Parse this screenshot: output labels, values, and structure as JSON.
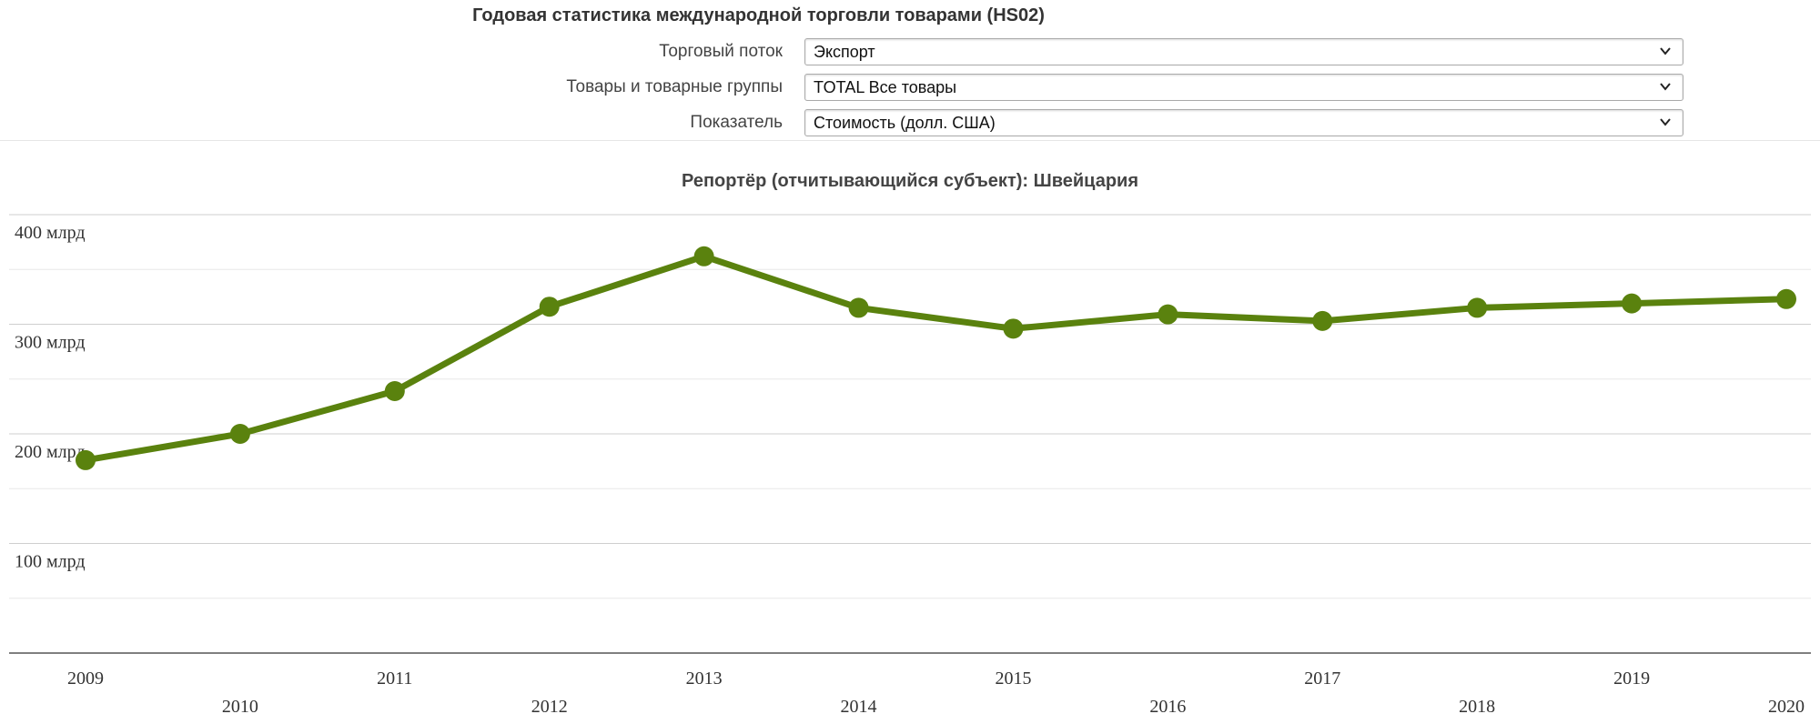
{
  "header": {
    "title": "Годовая статистика международной торговли товарами (HS02)",
    "filters": [
      {
        "label": "Торговый поток",
        "value": "Экспорт"
      },
      {
        "label": "Товары и товарные группы",
        "value": "TOTAL Все товары"
      },
      {
        "label": "Показатель",
        "value": "Стоимость (долл. США)"
      }
    ]
  },
  "colors": {
    "series": "#5a820e",
    "grid": "#d8d8d8",
    "axis": "#333333"
  },
  "chart_data": {
    "type": "line",
    "title": "Репортёр (отчитывающийся субъект): Швейцария",
    "xlabel": "",
    "ylabel": "",
    "x": [
      2009,
      2010,
      2011,
      2012,
      2013,
      2014,
      2015,
      2016,
      2017,
      2018,
      2019,
      2020
    ],
    "series": [
      {
        "values": [
          176,
          200,
          239,
          316,
          362,
          315,
          296,
          309,
          303,
          315,
          319,
          323
        ]
      }
    ],
    "ylim": [
      0,
      400
    ],
    "yticks": [
      {
        "value": 100,
        "label": "100 млрд"
      },
      {
        "value": 200,
        "label": "200 млрд"
      },
      {
        "value": 300,
        "label": "300 млрд"
      },
      {
        "value": 400,
        "label": "400 млрд"
      }
    ],
    "grid": true,
    "legend": "none"
  }
}
